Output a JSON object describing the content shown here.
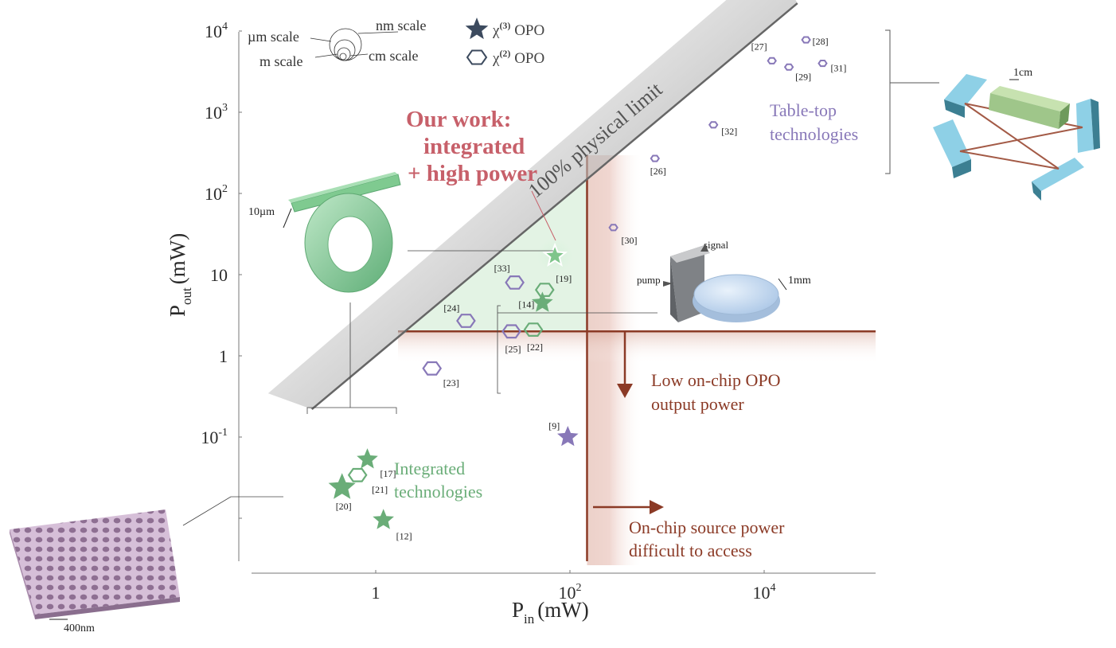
{
  "chart_data": {
    "type": "scatter",
    "x_scale": "log",
    "y_scale": "log",
    "xlabel_main": "P",
    "xlabel_sub": "in",
    "xlabel_unit": "(mW)",
    "ylabel_main": "P",
    "ylabel_sub": "out",
    "ylabel_unit": "(mW)",
    "xlim": [
      0.05,
      120000
    ],
    "ylim": [
      0.006,
      12000
    ],
    "x_ticks": [
      {
        "value": 1,
        "base": "1",
        "exp": ""
      },
      {
        "value": 100,
        "base": "10",
        "exp": "2"
      },
      {
        "value": 10000,
        "base": "10",
        "exp": "4"
      }
    ],
    "y_ticks": [
      {
        "value": 0.1,
        "base": "10",
        "exp": "-1"
      },
      {
        "value": 1,
        "base": "1",
        "exp": ""
      },
      {
        "value": 10,
        "base": "10",
        "exp": ""
      },
      {
        "value": 100,
        "base": "10",
        "exp": "2"
      },
      {
        "value": 1000,
        "base": "10",
        "exp": "3"
      },
      {
        "value": 10000,
        "base": "10",
        "exp": "4"
      }
    ],
    "legend": [
      {
        "symbol": "star",
        "label_pre": "χ",
        "label_sup": "(3)",
        "label_post": " OPO"
      },
      {
        "symbol": "hexagon",
        "label_pre": "χ",
        "label_sup": "(2)",
        "label_post": " OPO"
      }
    ],
    "points": [
      {
        "ref": "[20]",
        "x": 0.45,
        "y": 0.024,
        "shape": "star",
        "color": "#6aad78",
        "group": "integrated"
      },
      {
        "ref": "[21]",
        "x": 0.65,
        "y": 0.034,
        "shape": "hexagon",
        "color": "#6aad78",
        "group": "integrated"
      },
      {
        "ref": "[17]",
        "x": 0.82,
        "y": 0.053,
        "shape": "star",
        "color": "#6aad78",
        "group": "integrated"
      },
      {
        "ref": "[12]",
        "x": 1.2,
        "y": 0.0095,
        "shape": "star",
        "color": "#6aad78",
        "group": "integrated"
      },
      {
        "ref": "[23]",
        "x": 3.8,
        "y": 0.7,
        "shape": "hexagon",
        "color": "#8878b8",
        "group": "other"
      },
      {
        "ref": "[24]",
        "x": 8.5,
        "y": 2.7,
        "shape": "hexagon",
        "color": "#8878b8",
        "group": "other"
      },
      {
        "ref": "[25]",
        "x": 25,
        "y": 2.0,
        "shape": "hexagon",
        "color": "#8878b8",
        "group": "other"
      },
      {
        "ref": "[22]",
        "x": 42,
        "y": 2.1,
        "shape": "hexagon",
        "color": "#6aad78",
        "group": "integrated"
      },
      {
        "ref": "[33]",
        "x": 27,
        "y": 8.0,
        "shape": "hexagon",
        "color": "#8878b8",
        "group": "other"
      },
      {
        "ref": "[19]",
        "x": 55,
        "y": 6.5,
        "shape": "hexagon",
        "color": "#6aad78",
        "group": "integrated"
      },
      {
        "ref": "[14]",
        "x": 52,
        "y": 4.5,
        "shape": "star",
        "color": "#6aad78",
        "group": "integrated"
      },
      {
        "ref": "[9]",
        "x": 95,
        "y": 0.1,
        "shape": "star",
        "color": "#8878b8",
        "group": "other"
      },
      {
        "ref": "[30]",
        "x": 280,
        "y": 38,
        "shape": "hexagon",
        "color": "#8878b8",
        "group": "tabletop"
      },
      {
        "ref": "[26]",
        "x": 750,
        "y": 270,
        "shape": "hexagon",
        "color": "#8878b8",
        "group": "tabletop"
      },
      {
        "ref": "[32]",
        "x": 3000,
        "y": 700,
        "shape": "hexagon",
        "color": "#8878b8",
        "group": "tabletop"
      },
      {
        "ref": "[27]",
        "x": 12000,
        "y": 4300,
        "shape": "hexagon",
        "color": "#8878b8",
        "group": "tabletop"
      },
      {
        "ref": "[29]",
        "x": 18000,
        "y": 3600,
        "shape": "hexagon",
        "color": "#8878b8",
        "group": "tabletop"
      },
      {
        "ref": "[28]",
        "x": 27000,
        "y": 7800,
        "shape": "hexagon",
        "color": "#8878b8",
        "group": "tabletop"
      },
      {
        "ref": "[31]",
        "x": 40000,
        "y": 4000,
        "shape": "hexagon",
        "color": "#8878b8",
        "group": "tabletop"
      },
      {
        "ref": "",
        "x": 70,
        "y": 17,
        "shape": "star",
        "color": "#7fc58b",
        "group": "our-work"
      }
    ],
    "physical_limit_label": "100% physical limit",
    "thresholds": {
      "p_in": 150,
      "p_out": 2
    }
  },
  "annotations": {
    "our_work_line1": "Our work:",
    "our_work_line2": "integrated",
    "our_work_line3": "+ high power",
    "integrated_line1": "Integrated",
    "integrated_line2": "technologies",
    "tabletop_line1": "Table-top",
    "tabletop_line2": "technologies",
    "low_power_line1": "Low on-chip OPO",
    "low_power_line2": "output power",
    "source_line1": "On-chip source power",
    "source_line2": "difficult to access"
  },
  "scale_legend": {
    "um": "µm scale",
    "nm": "nm scale",
    "m": "m scale",
    "cm": "cm scale"
  },
  "illustrations": {
    "ring_dim": "10µm",
    "disk_dim": "1mm",
    "disk_pump": "pump",
    "disk_signal": "signal",
    "tabletop_dim": "1cm",
    "crystal_dim": "400nm"
  },
  "colors": {
    "green": "#6aad78",
    "purple": "#8878b8",
    "red": "#8b3a26",
    "ourwork": "#c7606a"
  }
}
